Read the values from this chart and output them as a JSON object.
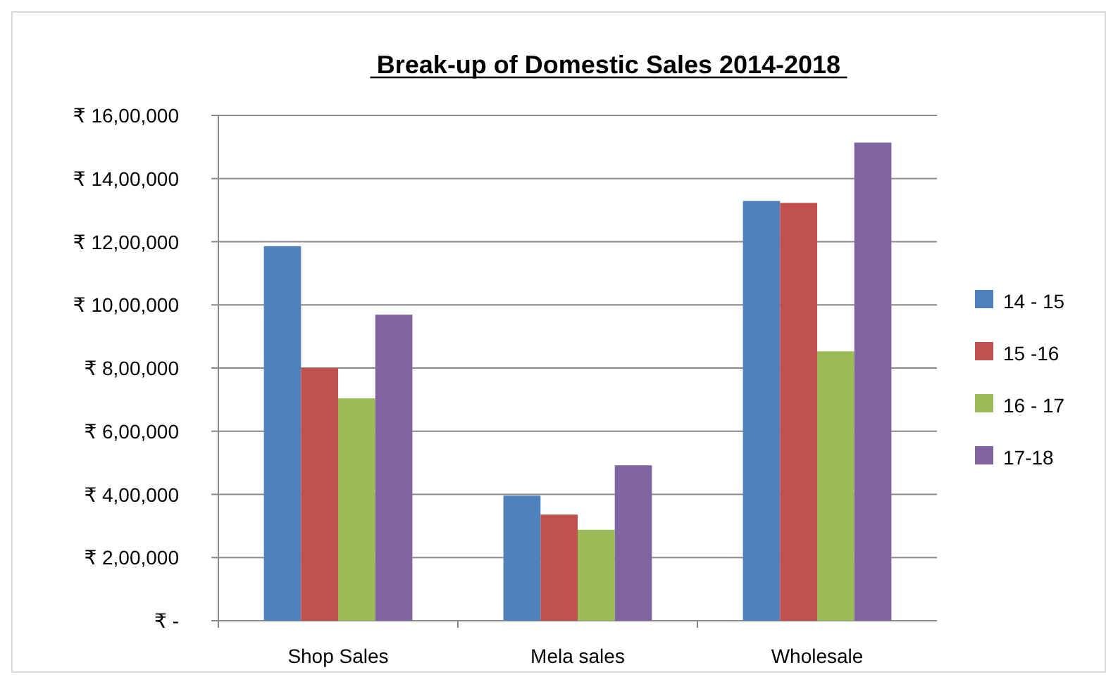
{
  "chart_data": {
    "type": "bar",
    "title": "Break-up of Domestic Sales 2014-2018",
    "categories": [
      "Shop Sales",
      "Mela sales",
      "Wholesale"
    ],
    "series": [
      {
        "name": "14 - 15",
        "color": "#4f81bd",
        "values": [
          1186000,
          396000,
          1329000
        ]
      },
      {
        "name": "15 -16",
        "color": "#c0504d",
        "values": [
          800000,
          336000,
          1323000
        ]
      },
      {
        "name": "16 - 17",
        "color": "#9bbb59",
        "values": [
          704000,
          288000,
          853000
        ]
      },
      {
        "name": "17-18",
        "color": "#8064a2",
        "values": [
          969000,
          492000,
          1514000
        ]
      }
    ],
    "ylim": [
      0,
      1600000
    ],
    "yticks": [
      {
        "value": 0,
        "label": "₹ -"
      },
      {
        "value": 200000,
        "label": "₹ 2,00,000"
      },
      {
        "value": 400000,
        "label": "₹ 4,00,000"
      },
      {
        "value": 600000,
        "label": "₹ 6,00,000"
      },
      {
        "value": 800000,
        "label": "₹ 8,00,000"
      },
      {
        "value": 1000000,
        "label": "₹ 10,00,000"
      },
      {
        "value": 1200000,
        "label": "₹ 12,00,000"
      },
      {
        "value": 1400000,
        "label": "₹ 14,00,000"
      },
      {
        "value": 1600000,
        "label": "₹ 16,00,000"
      }
    ],
    "grid": "y",
    "legend": "right"
  }
}
